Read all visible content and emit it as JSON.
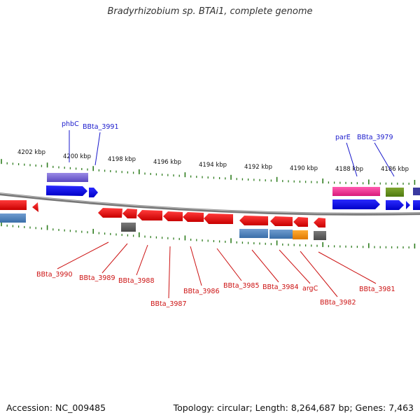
{
  "title": "Bradyrhizobium sp. BTAi1, complete genome",
  "footer": {
    "accession": "Accession: NC_009485",
    "summary": "Topology: circular; Length: 8,264,687 bp; Genes: 7,463"
  },
  "scale_labels": [
    "4202 kbp",
    "4200 kbp",
    "4198 kbp",
    "4196 kbp",
    "4194 kbp",
    "4192 kbp",
    "4190 kbp",
    "4188 kbp",
    "4186 kbp"
  ],
  "top_gene_labels": [
    "phbC",
    "BBta_3991",
    "parE",
    "BBta_3979"
  ],
  "bottom_gene_labels": [
    "BBta_3990",
    "BBta_3989",
    "BBta_3988",
    "BBta_3987",
    "BBta_3986",
    "BBta_3985",
    "BBta_3984",
    "argC",
    "BBta_3982",
    "BBta_3981"
  ],
  "colors": {
    "forward": "#0000ee",
    "reverse": "#ee0000",
    "top_label": "#1a1acc",
    "bottom_label": "#cc1111",
    "tick": "#2e7d1e",
    "backbone": "#808080"
  }
}
